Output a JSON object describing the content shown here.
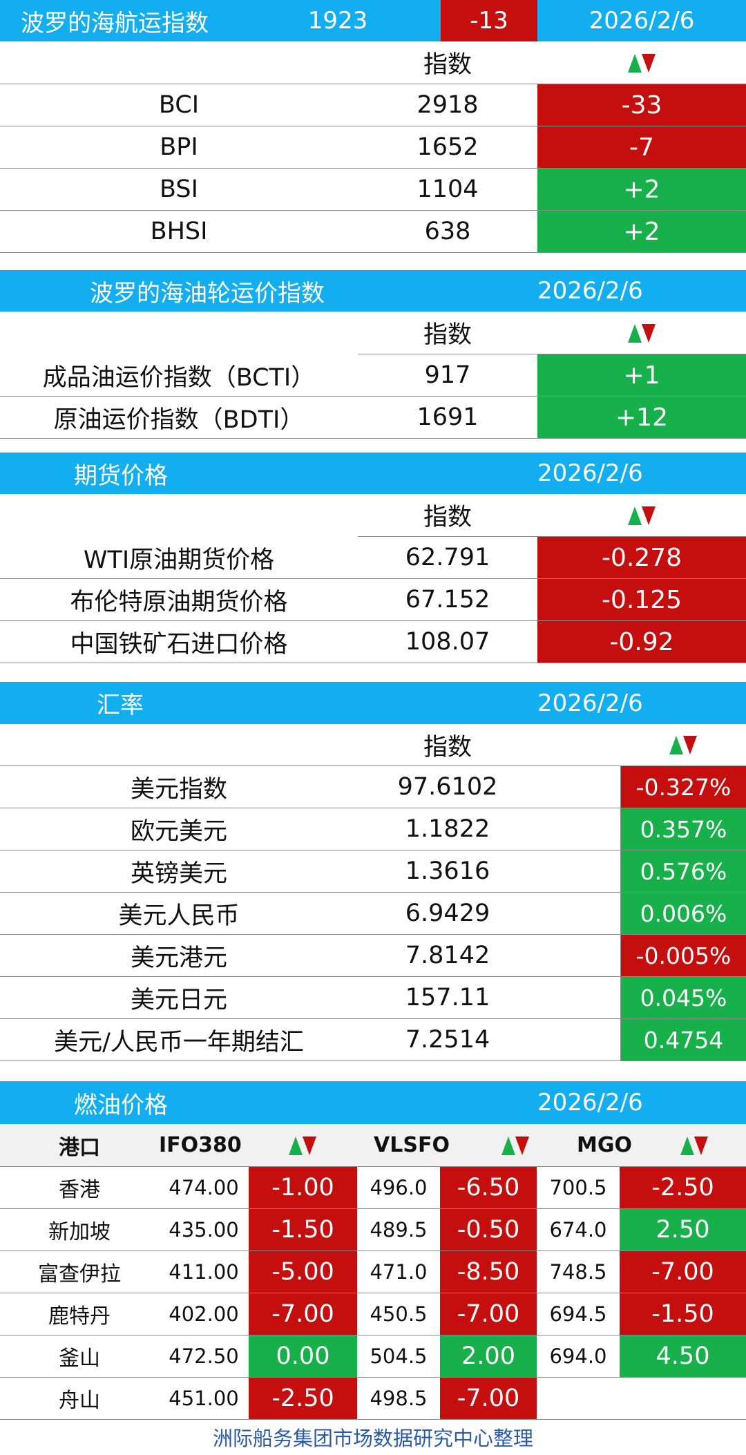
{
  "colors": {
    "header_blue": "#13aef0",
    "down_red": "#c50f0f",
    "up_green": "#18b04a",
    "footer_blue": "#2b5aa8"
  },
  "bdi": {
    "title": "波罗的海航运指数",
    "value": "1923",
    "change": "-13",
    "date": "2026/2/6",
    "col_label": "指数",
    "rows": [
      {
        "name": "BCI",
        "value": "2918",
        "change": "-33",
        "dir": "down"
      },
      {
        "name": "BPI",
        "value": "1652",
        "change": "-7",
        "dir": "down"
      },
      {
        "name": "BSI",
        "value": "1104",
        "change": "+2",
        "dir": "up"
      },
      {
        "name": "BHSI",
        "value": "638",
        "change": "+2",
        "dir": "up"
      }
    ]
  },
  "tanker": {
    "title": "波罗的海油轮运价指数",
    "date": "2026/2/6",
    "col_label": "指数",
    "rows": [
      {
        "name": "成品油运价指数（BCTI）",
        "value": "917",
        "change": "+1",
        "dir": "up"
      },
      {
        "name": "原油运价指数（BDTI）",
        "value": "1691",
        "change": "+12",
        "dir": "up"
      }
    ]
  },
  "futures": {
    "title": "期货价格",
    "date": "2026/2/6",
    "col_label": "指数",
    "rows": [
      {
        "name": "WTI原油期货价格",
        "value": "62.791",
        "change": "-0.278",
        "dir": "down"
      },
      {
        "name": "布伦特原油期货价格",
        "value": "67.152",
        "change": "-0.125",
        "dir": "down"
      },
      {
        "name": "中国铁矿石进口价格",
        "value": "108.07",
        "change": "-0.92",
        "dir": "down"
      }
    ]
  },
  "fx": {
    "title": "汇率",
    "date": "2026/2/6",
    "col_label": "指数",
    "rows": [
      {
        "name": "美元指数",
        "value": "97.6102",
        "change": "-0.327%",
        "dir": "down"
      },
      {
        "name": "欧元美元",
        "value": "1.1822",
        "change": "0.357%",
        "dir": "up"
      },
      {
        "name": "英镑美元",
        "value": "1.3616",
        "change": "0.576%",
        "dir": "up"
      },
      {
        "name": "美元人民币",
        "value": "6.9429",
        "change": "0.006%",
        "dir": "up"
      },
      {
        "name": "美元港元",
        "value": "7.8142",
        "change": "-0.005%",
        "dir": "down"
      },
      {
        "name": "美元日元",
        "value": "157.11",
        "change": "0.045%",
        "dir": "up"
      },
      {
        "name": "美元/人民币一年期结汇",
        "value": "7.2514",
        "change": "0.4754",
        "dir": "up"
      }
    ]
  },
  "fuel": {
    "title": "燃油价格",
    "date": "2026/2/6",
    "headers": {
      "port": "港口",
      "ifo": "IFO380",
      "vlsfo": "VLSFO",
      "mgo": "MGO"
    },
    "rows": [
      {
        "port": "香港",
        "ifo": "474.00",
        "ifo_chg": "-1.00",
        "ifo_dir": "down",
        "vlsfo": "496.0",
        "vlsfo_chg": "-6.50",
        "vlsfo_dir": "down",
        "mgo": "700.5",
        "mgo_chg": "-2.50",
        "mgo_dir": "down"
      },
      {
        "port": "新加坡",
        "ifo": "435.00",
        "ifo_chg": "-1.50",
        "ifo_dir": "down",
        "vlsfo": "489.5",
        "vlsfo_chg": "-0.50",
        "vlsfo_dir": "down",
        "mgo": "674.0",
        "mgo_chg": "2.50",
        "mgo_dir": "up"
      },
      {
        "port": "富查伊拉",
        "ifo": "411.00",
        "ifo_chg": "-5.00",
        "ifo_dir": "down",
        "vlsfo": "471.0",
        "vlsfo_chg": "-8.50",
        "vlsfo_dir": "down",
        "mgo": "748.5",
        "mgo_chg": "-7.00",
        "mgo_dir": "down"
      },
      {
        "port": "鹿特丹",
        "ifo": "402.00",
        "ifo_chg": "-7.00",
        "ifo_dir": "down",
        "vlsfo": "450.5",
        "vlsfo_chg": "-7.00",
        "vlsfo_dir": "down",
        "mgo": "694.5",
        "mgo_chg": "-1.50",
        "mgo_dir": "down"
      },
      {
        "port": "釜山",
        "ifo": "472.50",
        "ifo_chg": "0.00",
        "ifo_dir": "up",
        "vlsfo": "504.5",
        "vlsfo_chg": "2.00",
        "vlsfo_dir": "up",
        "mgo": "694.0",
        "mgo_chg": "4.50",
        "mgo_dir": "up"
      },
      {
        "port": "舟山",
        "ifo": "451.00",
        "ifo_chg": "-2.50",
        "ifo_dir": "down",
        "vlsfo": "498.5",
        "vlsfo_chg": "-7.00",
        "vlsfo_dir": "down",
        "mgo": "",
        "mgo_chg": "",
        "mgo_dir": ""
      }
    ]
  },
  "footer": "洲际船务集团市场数据研究中心整理"
}
